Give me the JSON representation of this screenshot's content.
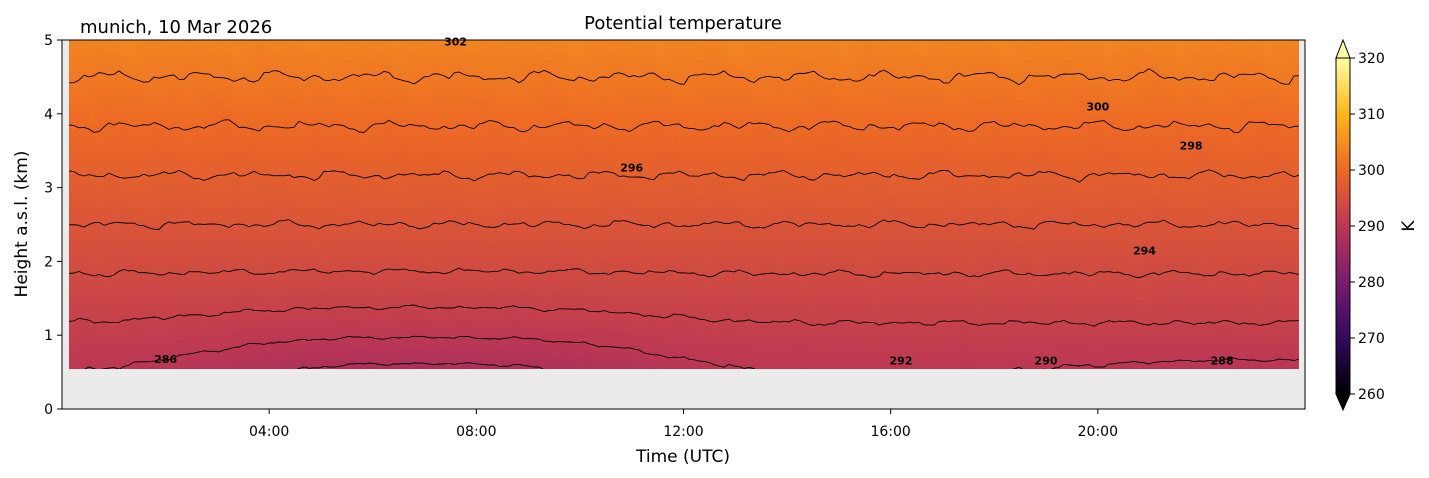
{
  "chart_data": {
    "type": "heatmap",
    "title": "Potential temperature",
    "subtitle": "munich, 10 Mar 2026",
    "xlabel": "Time (UTC)",
    "ylabel": "Height a.s.l. (km)",
    "x_range_hours": [
      0,
      24
    ],
    "ylim": [
      0,
      5
    ],
    "data_ylim": [
      0.55,
      5
    ],
    "x_ticks": [
      {
        "hour": 4,
        "label": "04:00"
      },
      {
        "hour": 8,
        "label": "08:00"
      },
      {
        "hour": 12,
        "label": "12:00"
      },
      {
        "hour": 16,
        "label": "16:00"
      },
      {
        "hour": 20,
        "label": "20:00"
      }
    ],
    "y_ticks": [
      {
        "value": 0,
        "label": "0"
      },
      {
        "value": 1,
        "label": "1"
      },
      {
        "value": 2,
        "label": "2"
      },
      {
        "value": 3,
        "label": "3"
      },
      {
        "value": 4,
        "label": "4"
      },
      {
        "value": 5,
        "label": "5"
      }
    ],
    "colorbar": {
      "label": "K",
      "colormap": "inferno",
      "min": 260,
      "max": 320,
      "extend": "both",
      "ticks": [
        {
          "value": 260,
          "label": "260"
        },
        {
          "value": 270,
          "label": "270"
        },
        {
          "value": 280,
          "label": "280"
        },
        {
          "value": 290,
          "label": "290"
        },
        {
          "value": 300,
          "label": "300"
        },
        {
          "value": 310,
          "label": "310"
        },
        {
          "value": 320,
          "label": "320"
        }
      ],
      "colors": [
        "#000004",
        "#320a5e",
        "#781c6d",
        "#bc3754",
        "#ed6925",
        "#fbb61a",
        "#fcffa4"
      ]
    },
    "field": {
      "surface_theta_K": 288.5,
      "lapse_K_per_km": 3.0,
      "pool_center_hour": 7.0,
      "pool_half_width_hours": 4.5,
      "pool_depth_km": 2.2,
      "pool_strength_K": 4.5,
      "afternoon_low_hour": 23.0,
      "afternoon_low_width_hours": 3.5,
      "afternoon_low_strength_K": 2.5
    },
    "contour_levels": [
      286,
      288,
      290,
      292,
      294,
      296,
      298,
      300,
      302
    ],
    "contour_labels": [
      {
        "text": "286",
        "hour": 2.0,
        "km": 0.68
      },
      {
        "text": "292",
        "hour": 16.2,
        "km": 0.66
      },
      {
        "text": "290",
        "hour": 19.0,
        "km": 0.66
      },
      {
        "text": "288",
        "hour": 22.4,
        "km": 0.66
      },
      {
        "text": "294",
        "hour": 20.9,
        "km": 2.15
      },
      {
        "text": "296",
        "hour": 11.0,
        "km": 3.27
      },
      {
        "text": "298",
        "hour": 21.8,
        "km": 3.57
      },
      {
        "text": "300",
        "hour": 20.0,
        "km": 4.1
      },
      {
        "text": "302",
        "hour": 7.6,
        "km": 4.98
      }
    ],
    "missing_data_color": "#ebebeb"
  }
}
